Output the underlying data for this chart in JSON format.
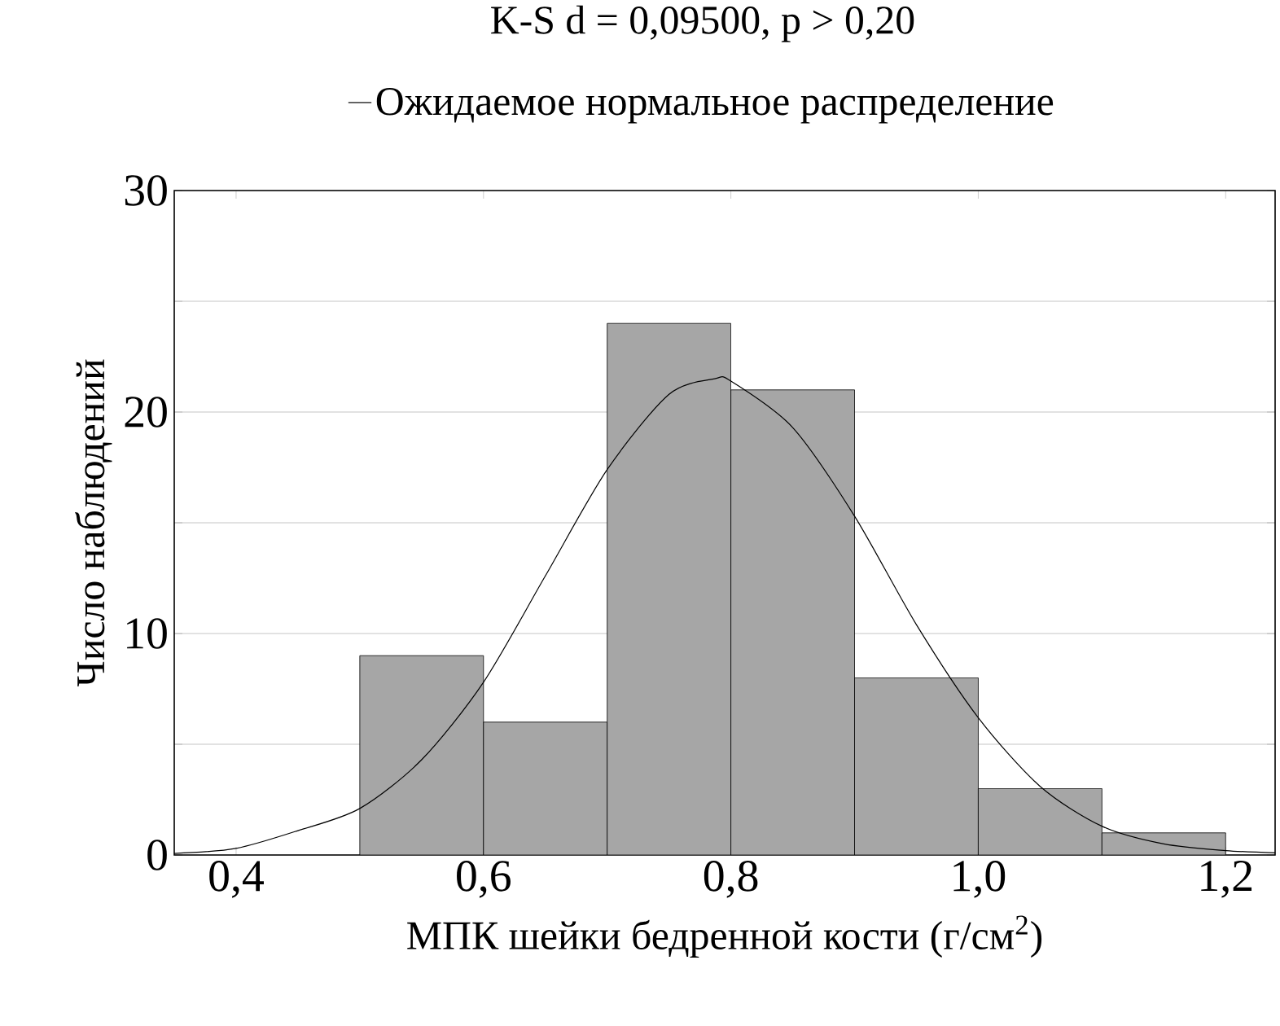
{
  "chart_data": {
    "type": "histogram",
    "title": "K-S d = 0,09500, p > 0,20",
    "xlabel": "МПК шейки бедренной кости (г/см$^{2}$)",
    "ylabel": "Число наблюдений",
    "bins": [
      0.5,
      0.6,
      0.7,
      0.8,
      0.9,
      1.0,
      1.1,
      1.2
    ],
    "values": [
      9,
      6,
      24,
      21,
      8,
      3,
      1
    ],
    "color": "#a6a6a6",
    "series": [
      {
        "type": "line",
        "name": "Ожидаемое нормальное распределение",
        "color": "#000000",
        "x": [
          0.35,
          0.4,
          0.45,
          0.5,
          0.55,
          0.6,
          0.65,
          0.7,
          0.75,
          0.787,
          0.8,
          0.85,
          0.9,
          0.95,
          1.0,
          1.05,
          1.1,
          1.15,
          1.2,
          1.24
        ],
        "values": [
          0.07,
          0.3,
          1.1,
          2.1,
          4.3,
          7.8,
          12.6,
          17.4,
          20.8,
          21.5,
          21.4,
          19.3,
          15.3,
          10.4,
          6.2,
          3.1,
          1.3,
          0.5,
          0.2,
          0.1
        ]
      }
    ],
    "xlim": [
      0.35,
      1.24
    ],
    "ylim": [
      0,
      30
    ],
    "xticks": [
      {
        "value": 0.4,
        "label": "0,4"
      },
      {
        "value": 0.6,
        "label": "0,6"
      },
      {
        "value": 0.8,
        "label": "0,8"
      },
      {
        "value": 1.0,
        "label": "1,0"
      },
      {
        "value": 1.2,
        "label": "1,2"
      }
    ],
    "yticks": [
      0,
      {
        "value": 5,
        "label": null
      },
      10,
      {
        "value": 15,
        "label": null
      },
      20,
      {
        "value": 25,
        "label": null
      },
      30
    ],
    "grid": "y",
    "legend": "top"
  }
}
